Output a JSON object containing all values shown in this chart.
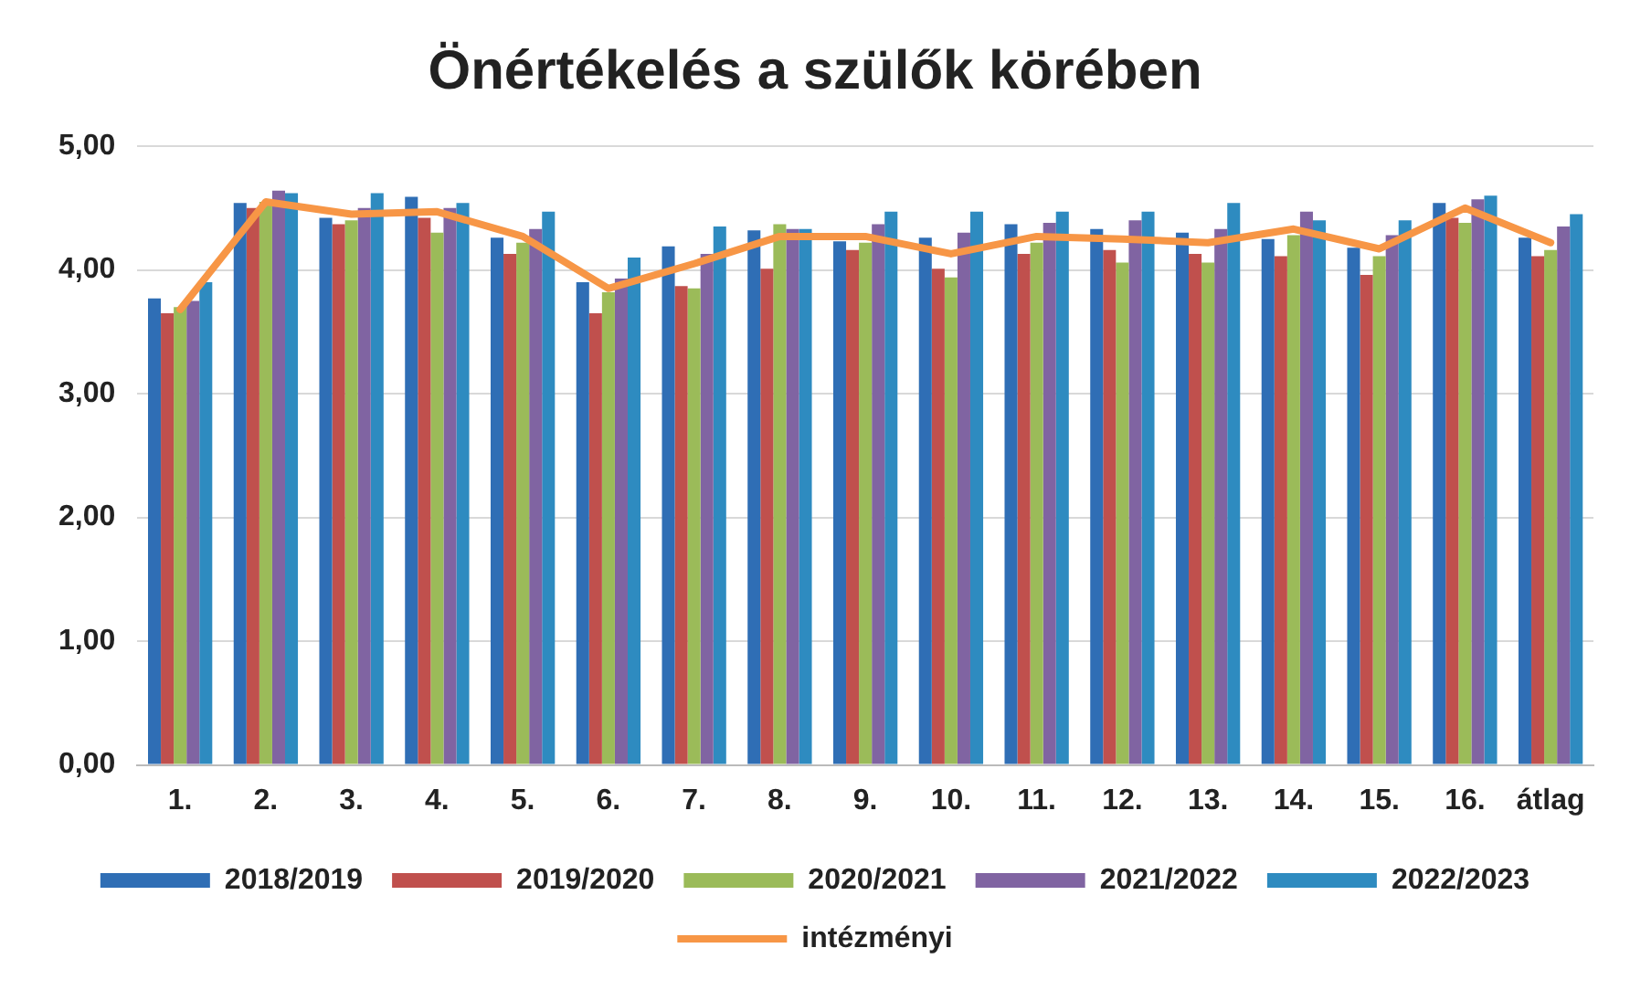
{
  "chart_data": {
    "type": "bar",
    "title": "Önértékelés a szülők körében",
    "categories": [
      "1.",
      "2.",
      "3.",
      "4.",
      "5.",
      "6.",
      "7.",
      "8.",
      "9.",
      "10.",
      "11.",
      "12.",
      "13.",
      "14.",
      "15.",
      "16.",
      "átlag"
    ],
    "series": [
      {
        "name": "2018/2019",
        "color": "#2f6eb5",
        "values": [
          3.77,
          4.54,
          4.42,
          4.59,
          4.26,
          3.9,
          4.19,
          4.32,
          4.23,
          4.26,
          4.37,
          4.33,
          4.3,
          4.25,
          4.18,
          4.54,
          4.26
        ]
      },
      {
        "name": "2019/2020",
        "color": "#c0504d",
        "values": [
          3.65,
          4.5,
          4.37,
          4.42,
          4.13,
          3.65,
          3.87,
          4.01,
          4.16,
          4.01,
          4.13,
          4.16,
          4.13,
          4.11,
          3.96,
          4.42,
          4.11
        ]
      },
      {
        "name": "2020/2021",
        "color": "#9bbb59",
        "values": [
          3.7,
          4.55,
          4.4,
          4.3,
          4.22,
          3.82,
          3.85,
          4.37,
          4.22,
          3.94,
          4.22,
          4.06,
          4.06,
          4.28,
          4.11,
          4.38,
          4.16
        ]
      },
      {
        "name": "2021/2022",
        "color": "#8064a2",
        "values": [
          3.75,
          4.64,
          4.5,
          4.5,
          4.33,
          3.93,
          4.13,
          4.33,
          4.37,
          4.3,
          4.38,
          4.4,
          4.33,
          4.47,
          4.28,
          4.57,
          4.35
        ]
      },
      {
        "name": "2022/2023",
        "color": "#2e8bc0",
        "values": [
          3.9,
          4.62,
          4.62,
          4.54,
          4.47,
          4.1,
          4.35,
          4.33,
          4.47,
          4.47,
          4.47,
          4.47,
          4.54,
          4.4,
          4.4,
          4.6,
          4.45
        ]
      },
      {
        "name": "intézményi",
        "type": "line",
        "color": "#f79646",
        "values": [
          3.68,
          4.55,
          4.45,
          4.47,
          4.27,
          3.85,
          4.05,
          4.27,
          4.27,
          4.13,
          4.27,
          4.25,
          4.22,
          4.33,
          4.17,
          4.5,
          4.22
        ]
      }
    ],
    "ylim": [
      0,
      5
    ],
    "yticks": [
      {
        "value": 0,
        "label": "0,00"
      },
      {
        "value": 1,
        "label": "1,00"
      },
      {
        "value": 2,
        "label": "2,00"
      },
      {
        "value": 3,
        "label": "3,00"
      },
      {
        "value": 4,
        "label": "4,00"
      },
      {
        "value": 5,
        "label": "5,00"
      }
    ],
    "grid": "y",
    "legend": "bottom",
    "marker": "none",
    "line_style": "solid"
  }
}
